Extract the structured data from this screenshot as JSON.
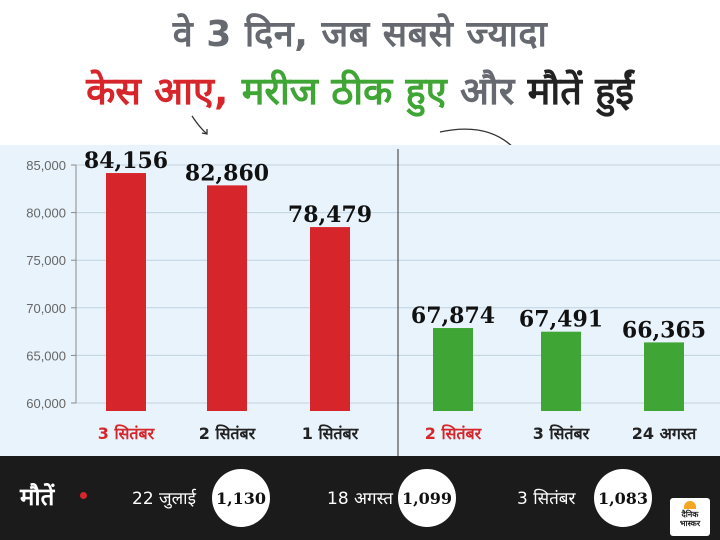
{
  "title": {
    "line1": "वे 3 दिन, जब सबसे ज्यादा",
    "line2_part1": "केस आए,",
    "line2_part2": "मरीज ठीक हुए",
    "line2_part3": "और",
    "line2_part4": "मौतें हुईं"
  },
  "colors": {
    "cases_red": "#d7262b",
    "recovered_green": "#3fa535",
    "title_gray": "#666a70",
    "chart_bg": "#e8f3fb",
    "deaths_bg": "#1b1b1b"
  },
  "chart_data": [
    {
      "type": "bar",
      "categories": [
        "3 सितंबर",
        "2 सितंबर",
        "1 सितंबर"
      ],
      "values": [
        84156,
        82860,
        78479
      ],
      "value_labels": [
        "84,156",
        "82,860",
        "78,479"
      ],
      "color": "#d7262b",
      "ylim": [
        60000,
        85000
      ],
      "yticks": [
        "85,000",
        "80,000",
        "75,000",
        "70,000",
        "65,000",
        "60,000"
      ],
      "ytick_values": [
        85000,
        80000,
        75000,
        70000,
        65000,
        60000
      ],
      "grid": true
    },
    {
      "type": "bar",
      "categories": [
        "2 सितंबर",
        "3 सितंबर",
        "24 अगस्त"
      ],
      "values": [
        67874,
        67491,
        66365
      ],
      "value_labels": [
        "67,874",
        "67,491",
        "66,365"
      ],
      "color": "#3fa535",
      "ylim": [
        60000,
        85000
      ],
      "grid": true
    }
  ],
  "deaths": {
    "label": "मौतें",
    "items": [
      {
        "date": "22 जुलाई",
        "value": "1,130"
      },
      {
        "date": "18 अगस्त",
        "value": "1,099"
      },
      {
        "date": "3  सितंबर",
        "value": "1,083"
      }
    ]
  },
  "logo": {
    "line1": "दैनिक",
    "line2": "भास्कर"
  }
}
